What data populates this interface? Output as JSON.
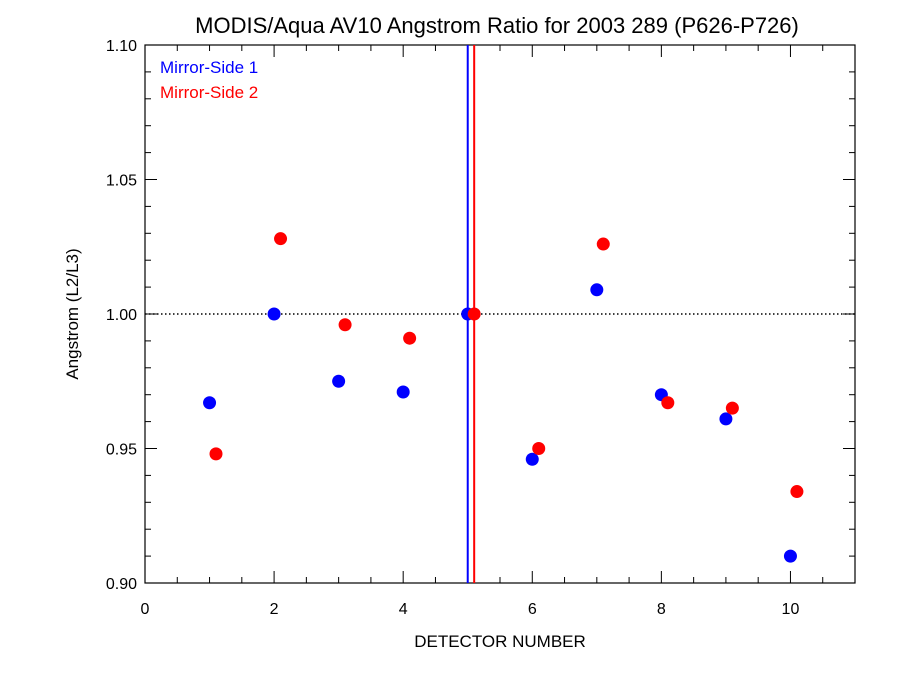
{
  "chart_data": {
    "type": "scatter",
    "title": "MODIS/Aqua AV10 Angstrom Ratio for 2003 289 (P626-P726)",
    "xlabel": "DETECTOR NUMBER",
    "ylabel": "Angstrom (L2/L3)",
    "xlim": [
      0,
      11
    ],
    "ylim": [
      0.9,
      1.1
    ],
    "x_ticks": [
      0,
      2,
      4,
      6,
      8,
      10
    ],
    "y_ticks": [
      0.9,
      0.95,
      1.0,
      1.05,
      1.1
    ],
    "x_tick_labels": [
      "0",
      "2",
      "4",
      "6",
      "8",
      "10"
    ],
    "y_tick_labels": [
      "0.90",
      "0.95",
      "1.00",
      "1.05",
      "1.10"
    ],
    "reference_hline": 1.0,
    "vlines": [
      {
        "x": 5.0,
        "color": "#0000ff"
      },
      {
        "x": 5.1,
        "color": "#ff0000"
      }
    ],
    "legend_placement": "top-left",
    "series": [
      {
        "name": "Mirror-Side 1",
        "color": "#0000ff",
        "x": [
          1,
          2,
          3,
          4,
          5,
          6,
          7,
          8,
          9,
          10
        ],
        "y": [
          0.967,
          1.0,
          0.975,
          0.971,
          1.0,
          0.946,
          1.009,
          0.97,
          0.961,
          0.91
        ]
      },
      {
        "name": "Mirror-Side 2",
        "color": "#ff0000",
        "x": [
          1.1,
          2.1,
          3.1,
          4.1,
          5.1,
          6.1,
          7.1,
          8.1,
          9.1,
          10.1
        ],
        "y": [
          0.948,
          1.028,
          0.996,
          0.991,
          1.0,
          0.95,
          1.026,
          0.967,
          0.965,
          0.934
        ]
      }
    ]
  }
}
